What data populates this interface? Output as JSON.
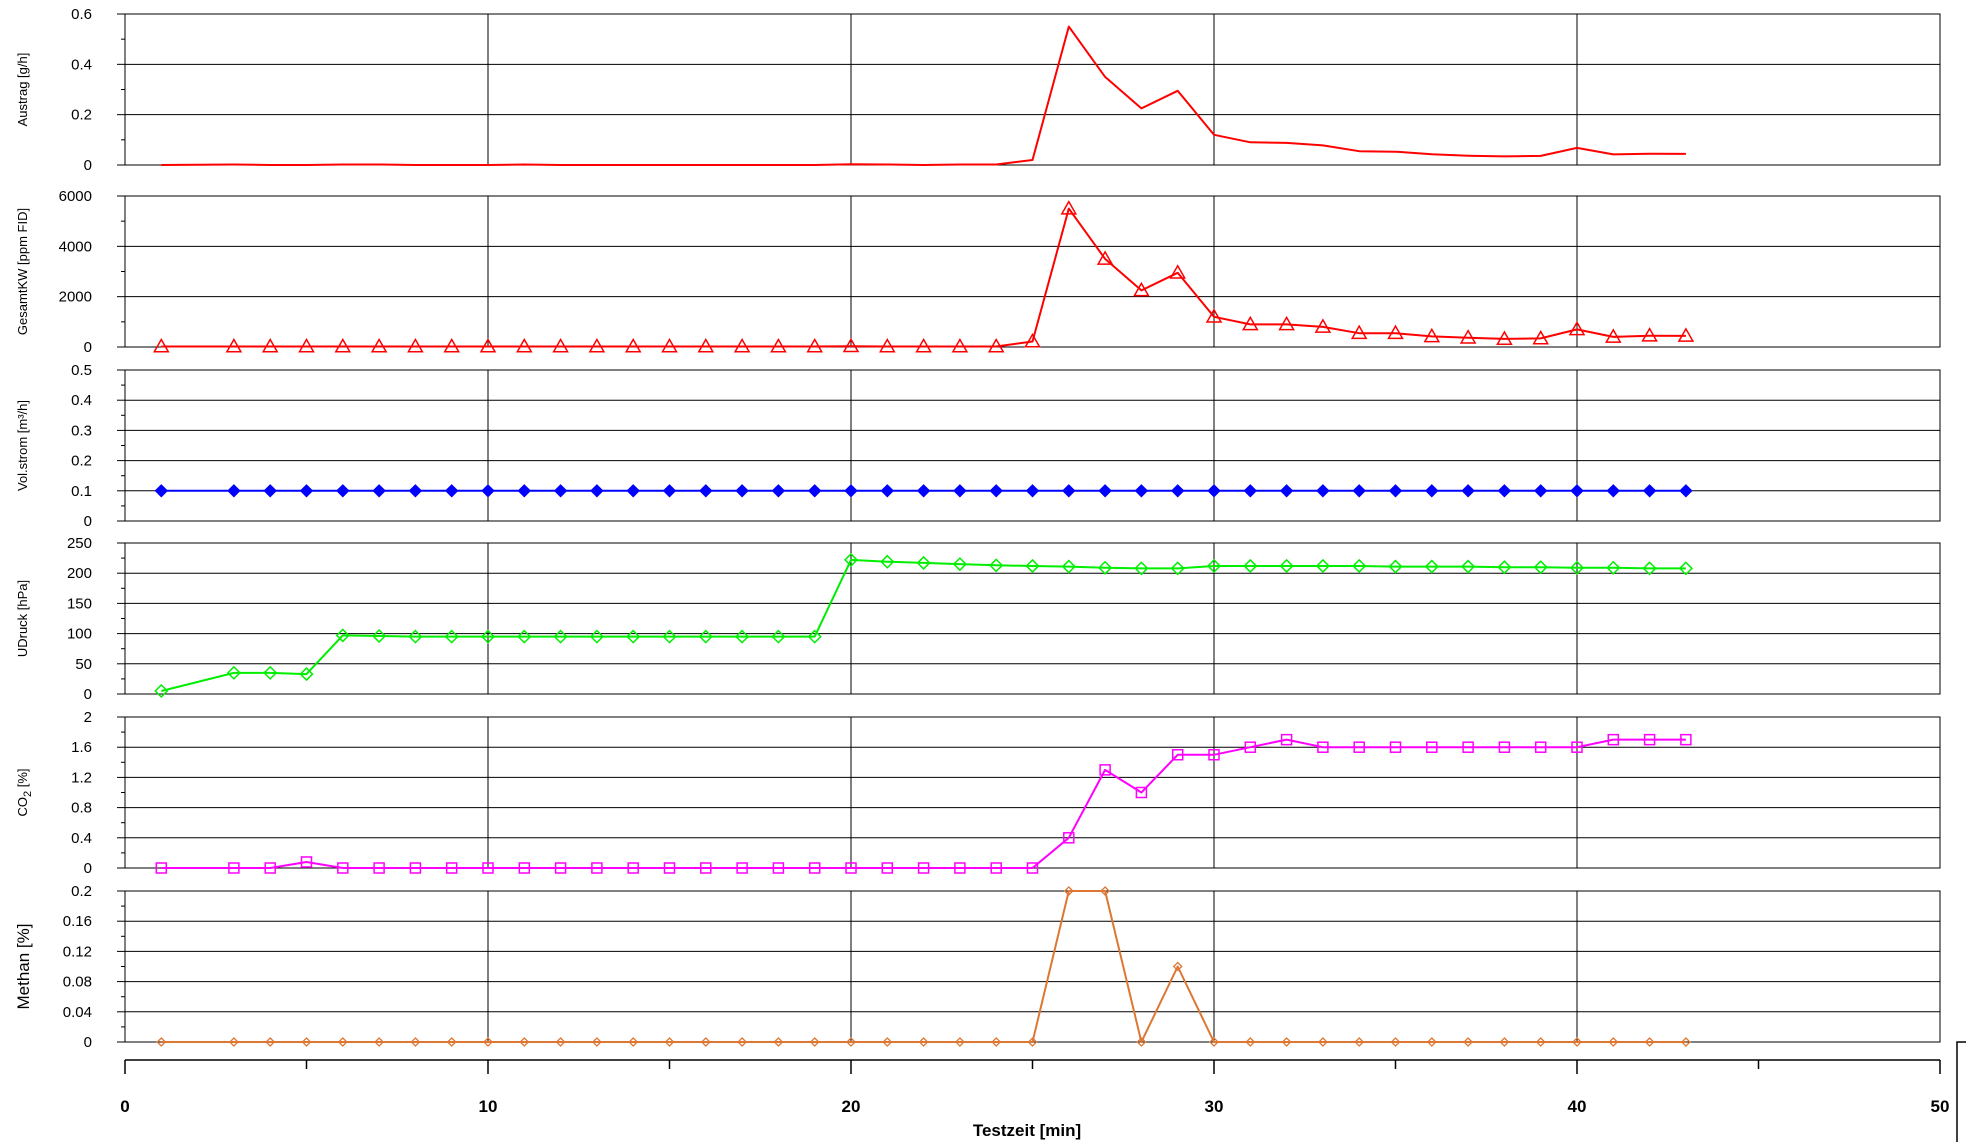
{
  "chart_data": {
    "type": "line",
    "xlabel": "Testzeit [min]",
    "xlim": [
      0,
      50
    ],
    "xticks": [
      "0",
      "10",
      "20",
      "30",
      "40",
      "50"
    ],
    "grid": true,
    "panels": [
      {
        "ylabel": "Austrag [g/h]",
        "ylim": [
          0,
          0.6
        ],
        "yticks": [
          "0",
          "0.2",
          "0.4",
          "0.6"
        ],
        "color": "#ff0000",
        "marker": "none",
        "x": [
          1,
          3,
          4,
          5,
          6,
          7,
          8,
          9,
          10,
          11,
          12,
          13,
          14,
          15,
          16,
          17,
          18,
          19,
          20,
          21,
          22,
          23,
          24,
          25,
          26,
          27,
          28,
          29,
          30,
          31,
          32,
          33,
          34,
          35,
          36,
          37,
          38,
          39,
          40,
          41,
          42,
          43
        ],
        "values": [
          0,
          0.002,
          0,
          0,
          0.002,
          0.002,
          0,
          0,
          0,
          0.002,
          0,
          0,
          0,
          0,
          0,
          0,
          0,
          0,
          0.003,
          0.002,
          0,
          0.002,
          0.002,
          0.02,
          0.55,
          0.35,
          0.225,
          0.295,
          0.12,
          0.09,
          0.088,
          0.078,
          0.055,
          0.053,
          0.043,
          0.037,
          0.034,
          0.036,
          0.068,
          0.042,
          0.045,
          0.044
        ]
      },
      {
        "ylabel": "GesamtKW [ppm FID]",
        "ylim": [
          0,
          6000
        ],
        "yticks": [
          "0",
          "2000",
          "4000",
          "6000"
        ],
        "color": "#ff0000",
        "marker": "triangle",
        "x": [
          1,
          3,
          4,
          5,
          6,
          7,
          8,
          9,
          10,
          11,
          12,
          13,
          14,
          15,
          16,
          17,
          18,
          19,
          20,
          21,
          22,
          23,
          24,
          25,
          26,
          27,
          28,
          29,
          30,
          31,
          32,
          33,
          34,
          35,
          36,
          37,
          38,
          39,
          40,
          41,
          42,
          43
        ],
        "values": [
          20,
          20,
          20,
          20,
          20,
          20,
          20,
          20,
          20,
          20,
          20,
          20,
          20,
          20,
          20,
          20,
          20,
          20,
          30,
          20,
          20,
          20,
          20,
          220,
          5500,
          3500,
          2250,
          2950,
          1200,
          900,
          900,
          800,
          550,
          550,
          420,
          370,
          320,
          340,
          700,
          400,
          450,
          440
        ]
      },
      {
        "ylabel": "Vol.strom [m³/h]",
        "ylim": [
          0,
          0.5
        ],
        "yticks": [
          "0",
          "0.1",
          "0.2",
          "0.3",
          "0.4",
          "0.5"
        ],
        "color": "#0000ff",
        "marker": "filled-diamond",
        "x": [
          1,
          3,
          4,
          5,
          6,
          7,
          8,
          9,
          10,
          11,
          12,
          13,
          14,
          15,
          16,
          17,
          18,
          19,
          20,
          21,
          22,
          23,
          24,
          25,
          26,
          27,
          28,
          29,
          30,
          31,
          32,
          33,
          34,
          35,
          36,
          37,
          38,
          39,
          40,
          41,
          42,
          43
        ],
        "values": [
          0.1,
          0.1,
          0.1,
          0.1,
          0.1,
          0.1,
          0.1,
          0.1,
          0.1,
          0.1,
          0.1,
          0.1,
          0.1,
          0.1,
          0.1,
          0.1,
          0.1,
          0.1,
          0.1,
          0.1,
          0.1,
          0.1,
          0.1,
          0.1,
          0.1,
          0.1,
          0.1,
          0.1,
          0.1,
          0.1,
          0.1,
          0.1,
          0.1,
          0.1,
          0.1,
          0.1,
          0.1,
          0.1,
          0.1,
          0.1,
          0.1,
          0.1
        ]
      },
      {
        "ylabel": "UDruck [hPa]",
        "ylim": [
          0,
          250
        ],
        "yticks": [
          "0",
          "50",
          "100",
          "150",
          "200",
          "250"
        ],
        "color": "#00ee00",
        "marker": "diamond",
        "x": [
          1,
          3,
          4,
          5,
          6,
          7,
          8,
          9,
          10,
          11,
          12,
          13,
          14,
          15,
          16,
          17,
          18,
          19,
          20,
          21,
          22,
          23,
          24,
          25,
          26,
          27,
          28,
          29,
          30,
          31,
          32,
          33,
          34,
          35,
          36,
          37,
          38,
          39,
          40,
          41,
          42,
          43
        ],
        "values": [
          5,
          35,
          35,
          33,
          97,
          96,
          95,
          95,
          95,
          95,
          95,
          95,
          95,
          95,
          95,
          95,
          95,
          95,
          222,
          219,
          217,
          215,
          213,
          212,
          211,
          209,
          208,
          208,
          212,
          212,
          212,
          212,
          212,
          211,
          211,
          211,
          210,
          210,
          209,
          209,
          208,
          208
        ]
      },
      {
        "ylabel_main": "CO",
        "ylabel_sub": "2",
        "ylabel_unit": " [%]",
        "ylim": [
          0,
          2
        ],
        "yticks": [
          "0",
          "0.4",
          "0.8",
          "1.2",
          "1.6",
          "2"
        ],
        "color": "#ff00ff",
        "marker": "square",
        "x": [
          1,
          3,
          4,
          5,
          6,
          7,
          8,
          9,
          10,
          11,
          12,
          13,
          14,
          15,
          16,
          17,
          18,
          19,
          20,
          21,
          22,
          23,
          24,
          25,
          26,
          27,
          28,
          29,
          30,
          31,
          32,
          33,
          34,
          35,
          36,
          37,
          38,
          39,
          40,
          41,
          42,
          43
        ],
        "values": [
          0,
          0,
          0,
          0.08,
          0,
          0,
          0,
          0,
          0,
          0,
          0,
          0,
          0,
          0,
          0,
          0,
          0,
          0,
          0,
          0,
          0,
          0,
          0,
          0,
          0.4,
          1.3,
          1,
          1.5,
          1.5,
          1.6,
          1.7,
          1.6,
          1.6,
          1.6,
          1.6,
          1.6,
          1.6,
          1.6,
          1.6,
          1.7,
          1.7,
          1.7
        ]
      },
      {
        "ylabel": "Methan [%]",
        "ylim": [
          0,
          0.2
        ],
        "yticks": [
          "0",
          "0.04",
          "0.08",
          "0.12",
          "0.16",
          "0.2"
        ],
        "color": "#dd7733",
        "marker": "small-diamond",
        "x": [
          1,
          3,
          4,
          5,
          6,
          7,
          8,
          9,
          10,
          11,
          12,
          13,
          14,
          15,
          16,
          17,
          18,
          19,
          20,
          21,
          22,
          23,
          24,
          25,
          26,
          27,
          28,
          29,
          30,
          31,
          32,
          33,
          34,
          35,
          36,
          37,
          38,
          39,
          40,
          41,
          42,
          43
        ],
        "values": [
          0,
          0,
          0,
          0,
          0,
          0,
          0,
          0,
          0,
          0,
          0,
          0,
          0,
          0,
          0,
          0,
          0,
          0,
          0,
          0,
          0,
          0,
          0,
          0,
          0.2,
          0.2,
          0,
          0.1,
          0,
          0,
          0,
          0,
          0,
          0,
          0,
          0,
          0,
          0,
          0,
          0,
          0,
          0
        ]
      }
    ]
  }
}
